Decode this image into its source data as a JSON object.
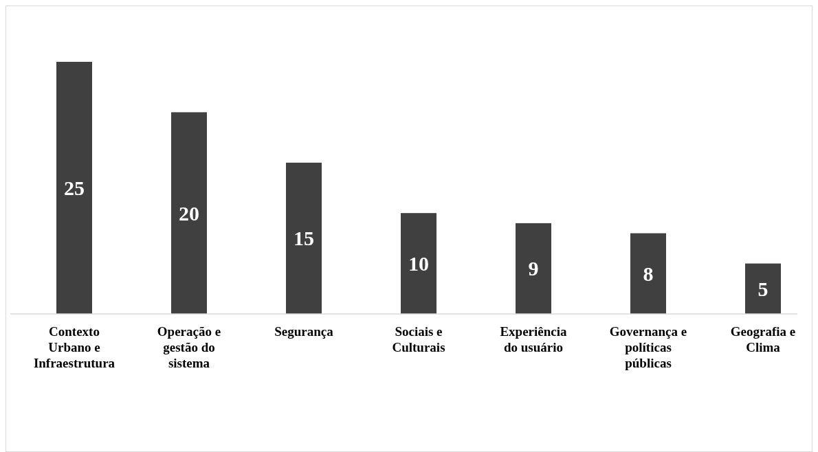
{
  "chart_data": {
    "type": "bar",
    "categories": [
      "Contexto Urbano e Infraestrutura",
      "Operação e gestão do sistema",
      "Segurança",
      "Sociais e Culturais",
      "Experiência do usuário",
      "Governança e políticas públicas",
      "Geografia e Clima"
    ],
    "values": [
      25,
      20,
      15,
      10,
      9,
      8,
      5
    ],
    "color": "#404040",
    "data_labels": true
  }
}
